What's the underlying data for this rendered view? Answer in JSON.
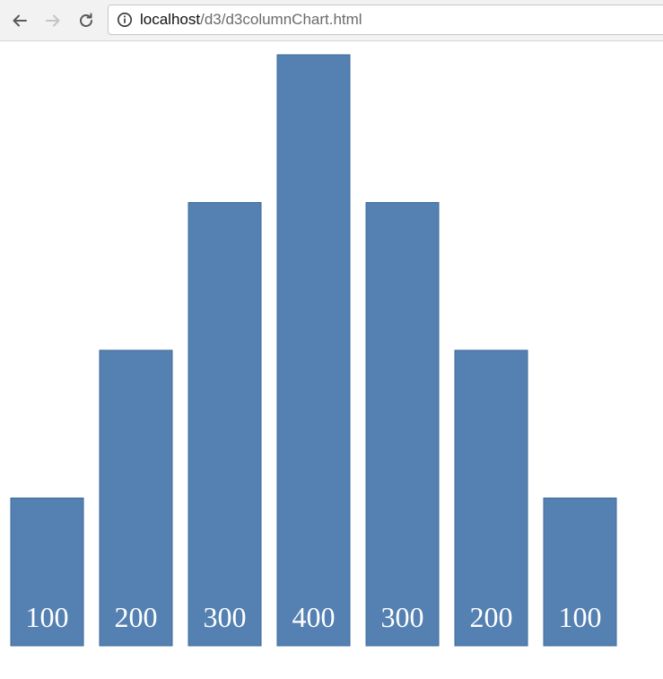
{
  "browser": {
    "url_host": "localhost",
    "url_path": "/d3/d3columnChart.html"
  },
  "colors": {
    "bar_fill": "#5481b2",
    "bar_stroke": "#3d6a9b",
    "label": "#ffffff"
  },
  "chart_data": {
    "type": "bar",
    "categories": [
      "",
      "",
      "",
      "",
      "",
      "",
      ""
    ],
    "values": [
      100,
      200,
      300,
      400,
      300,
      200,
      100
    ],
    "data_labels": [
      "100",
      "200",
      "300",
      "400",
      "300",
      "200",
      "100"
    ],
    "title": "",
    "xlabel": "",
    "ylabel": "",
    "ylim": [
      0,
      400
    ],
    "grid": false,
    "axes": false
  }
}
